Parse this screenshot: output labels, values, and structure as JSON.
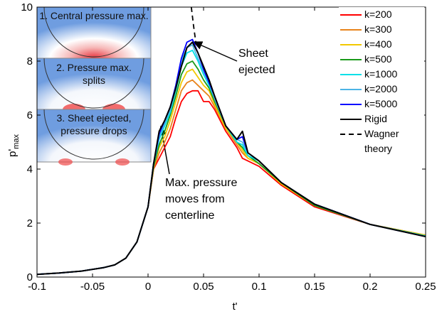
{
  "chart_data": {
    "type": "line",
    "xlabel": "t'",
    "ylabel": "p'",
    "ylabel_sub": "max",
    "insets": [
      "1. Central pressure max.",
      "2. Pressure max. splits",
      "3. Sheet ejected, pressure drops"
    ],
    "annotations": [
      "Sheet ejected",
      "Max. pressure moves from centerline"
    ],
    "xlim": [
      -0.1,
      0.25
    ],
    "xticks": [
      -0.1,
      -0.05,
      0,
      0.05,
      0.1,
      0.15,
      0.2,
      0.25
    ],
    "ylim": [
      0,
      10
    ],
    "yticks": [
      0,
      2,
      4,
      6,
      8,
      10
    ],
    "legend": "upper right",
    "x": [
      -0.1,
      -0.08,
      -0.06,
      -0.04,
      -0.03,
      -0.02,
      -0.01,
      0,
      0.005,
      0.01,
      0.015,
      0.02,
      0.025,
      0.03,
      0.035,
      0.04,
      0.045,
      0.05,
      0.055,
      0.06,
      0.07,
      0.08,
      0.085,
      0.09,
      0.1,
      0.12,
      0.15,
      0.2,
      0.25
    ],
    "series": [
      {
        "name": "k=200",
        "color": "#ff0000",
        "values": [
          0.1,
          0.15,
          0.22,
          0.35,
          0.45,
          0.7,
          1.3,
          2.6,
          4.0,
          4.4,
          4.8,
          5.2,
          5.9,
          6.5,
          6.8,
          6.9,
          6.9,
          6.5,
          6.5,
          6.2,
          5.4,
          4.8,
          4.4,
          4.3,
          4.1,
          3.4,
          2.6,
          1.95,
          1.55
        ]
      },
      {
        "name": "k=300",
        "color": "#e8841c",
        "values": [
          0.1,
          0.15,
          0.22,
          0.35,
          0.45,
          0.7,
          1.3,
          2.6,
          4.0,
          4.6,
          5.0,
          5.5,
          6.2,
          6.9,
          7.2,
          7.3,
          7.1,
          6.9,
          6.7,
          6.3,
          5.5,
          4.9,
          4.6,
          4.4,
          4.2,
          3.45,
          2.65,
          1.95,
          1.55
        ]
      },
      {
        "name": "k=400",
        "color": "#f2c800",
        "values": [
          0.1,
          0.15,
          0.22,
          0.35,
          0.45,
          0.7,
          1.3,
          2.6,
          4.1,
          4.8,
          5.2,
          5.8,
          6.5,
          7.2,
          7.6,
          7.7,
          7.4,
          7.1,
          6.9,
          6.4,
          5.5,
          5.0,
          4.7,
          4.4,
          4.2,
          3.45,
          2.65,
          1.95,
          1.55
        ]
      },
      {
        "name": "k=500",
        "color": "#1a9a1a",
        "values": [
          0.1,
          0.15,
          0.22,
          0.35,
          0.45,
          0.7,
          1.3,
          2.6,
          4.1,
          4.9,
          5.4,
          6.0,
          6.7,
          7.5,
          7.9,
          8.0,
          7.7,
          7.3,
          7.0,
          6.5,
          5.6,
          5.0,
          4.8,
          4.5,
          4.2,
          3.5,
          2.65,
          1.95,
          1.52
        ]
      },
      {
        "name": "k=1000",
        "color": "#00e0e8",
        "values": [
          0.1,
          0.15,
          0.22,
          0.35,
          0.45,
          0.7,
          1.3,
          2.6,
          4.2,
          5.1,
          5.6,
          6.1,
          6.9,
          7.8,
          8.3,
          8.4,
          8.0,
          7.5,
          7.1,
          6.6,
          5.6,
          5.0,
          4.9,
          4.5,
          4.3,
          3.5,
          2.7,
          1.95,
          1.52
        ]
      },
      {
        "name": "k=2000",
        "color": "#4cb4e6",
        "values": [
          0.1,
          0.15,
          0.22,
          0.35,
          0.45,
          0.7,
          1.3,
          2.6,
          4.2,
          5.2,
          5.7,
          6.2,
          7.0,
          8.0,
          8.5,
          8.6,
          8.1,
          7.6,
          7.2,
          6.6,
          5.6,
          5.1,
          5.0,
          4.6,
          4.3,
          3.5,
          2.7,
          1.95,
          1.5
        ]
      },
      {
        "name": "k=5000",
        "color": "#0000ff",
        "values": [
          0.1,
          0.15,
          0.22,
          0.35,
          0.45,
          0.7,
          1.3,
          2.6,
          4.2,
          5.3,
          5.8,
          6.3,
          7.1,
          8.1,
          8.7,
          8.8,
          8.3,
          7.7,
          7.2,
          6.7,
          5.6,
          5.1,
          5.2,
          4.6,
          4.3,
          3.5,
          2.7,
          1.95,
          1.5
        ]
      },
      {
        "name": "Rigid",
        "color": "#000000",
        "values": [
          0.1,
          0.15,
          0.22,
          0.35,
          0.45,
          0.7,
          1.3,
          2.6,
          4.2,
          5.4,
          5.8,
          6.3,
          7.0,
          7.8,
          8.5,
          8.7,
          8.3,
          7.8,
          7.3,
          6.7,
          5.6,
          5.1,
          5.4,
          4.6,
          4.3,
          3.5,
          2.7,
          1.95,
          1.5
        ]
      },
      {
        "name": "Wagner theory",
        "color": "#000000",
        "dashed": true,
        "x": [
          0.039,
          0.041,
          0.043
        ],
        "values": [
          10,
          9.3,
          8.7
        ]
      }
    ]
  }
}
